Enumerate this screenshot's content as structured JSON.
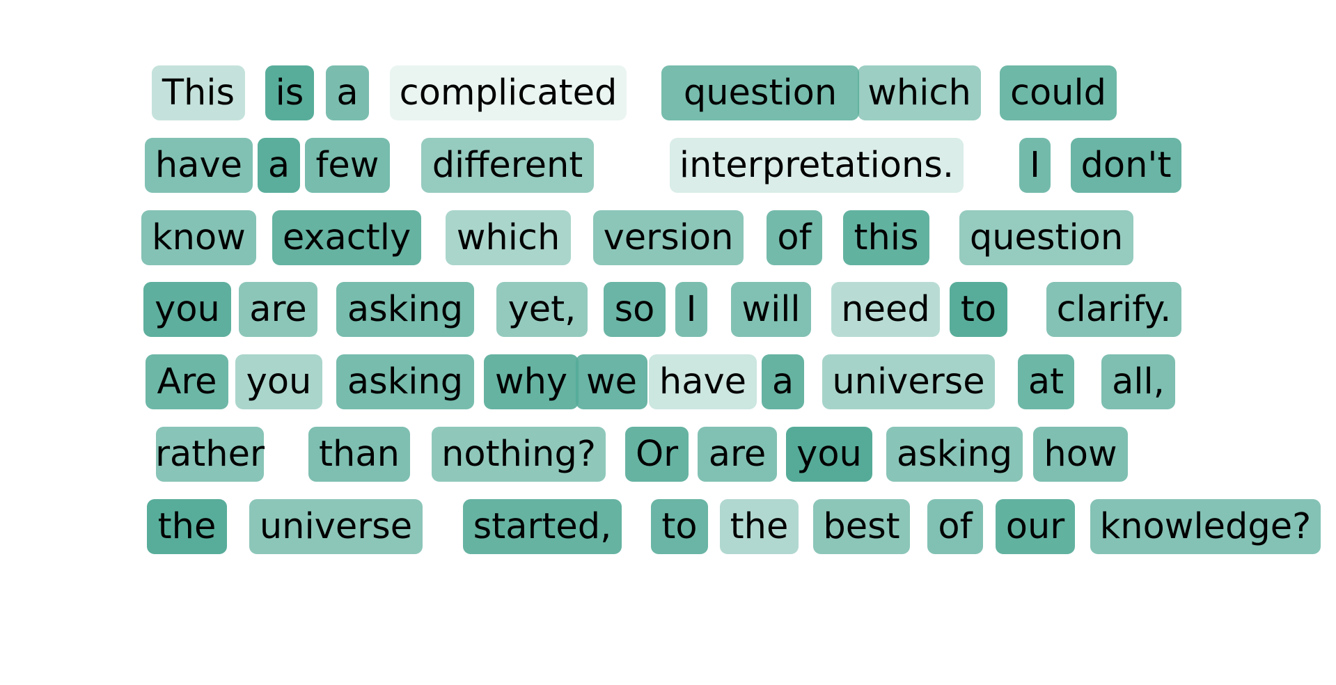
{
  "highlight_color": "#55ab98",
  "tokens": [
    {
      "text": "This",
      "weight": 0.35
    },
    {
      "text": "is",
      "weight": 0.98
    },
    {
      "text": "a",
      "weight": 0.78
    },
    {
      "text": "complicated",
      "weight": 0.12
    },
    {
      "text": "question",
      "weight": 0.8
    },
    {
      "text": "which",
      "weight": 0.58
    },
    {
      "text": "could",
      "weight": 0.85
    },
    {
      "text": "have",
      "weight": 0.74
    },
    {
      "text": "a",
      "weight": 0.97
    },
    {
      "text": "few",
      "weight": 0.8
    },
    {
      "text": "different",
      "weight": 0.62
    },
    {
      "text": "interpretations.",
      "weight": 0.22
    },
    {
      "text": "I",
      "weight": 0.82
    },
    {
      "text": "don't",
      "weight": 0.88
    },
    {
      "text": "know",
      "weight": 0.72
    },
    {
      "text": "exactly",
      "weight": 0.9
    },
    {
      "text": "which",
      "weight": 0.5
    },
    {
      "text": "version",
      "weight": 0.68
    },
    {
      "text": "of",
      "weight": 0.82
    },
    {
      "text": "this",
      "weight": 0.92
    },
    {
      "text": "question",
      "weight": 0.62
    },
    {
      "text": "you",
      "weight": 0.95
    },
    {
      "text": "are",
      "weight": 0.68
    },
    {
      "text": "asking",
      "weight": 0.8
    },
    {
      "text": "yet,",
      "weight": 0.63
    },
    {
      "text": "so",
      "weight": 0.88
    },
    {
      "text": "I",
      "weight": 0.78
    },
    {
      "text": "will",
      "weight": 0.74
    },
    {
      "text": "need",
      "weight": 0.42
    },
    {
      "text": "to",
      "weight": 0.98
    },
    {
      "text": "clarify.",
      "weight": 0.72
    },
    {
      "text": "Are",
      "weight": 0.86
    },
    {
      "text": "you",
      "weight": 0.5
    },
    {
      "text": "asking",
      "weight": 0.8
    },
    {
      "text": "why",
      "weight": 0.9
    },
    {
      "text": "we",
      "weight": 0.88
    },
    {
      "text": "have",
      "weight": 0.3
    },
    {
      "text": "a",
      "weight": 0.9
    },
    {
      "text": "universe",
      "weight": 0.52
    },
    {
      "text": "at",
      "weight": 0.86
    },
    {
      "text": "all,",
      "weight": 0.76
    },
    {
      "text": "rather",
      "weight": 0.7
    },
    {
      "text": "than",
      "weight": 0.76
    },
    {
      "text": "nothing?",
      "weight": 0.66
    },
    {
      "text": "Or",
      "weight": 0.9
    },
    {
      "text": "are",
      "weight": 0.74
    },
    {
      "text": "you",
      "weight": 1.0
    },
    {
      "text": "asking",
      "weight": 0.7
    },
    {
      "text": "how",
      "weight": 0.76
    },
    {
      "text": "the",
      "weight": 0.98
    },
    {
      "text": "universe",
      "weight": 0.68
    },
    {
      "text": "started,",
      "weight": 0.9
    },
    {
      "text": "to",
      "weight": 0.88
    },
    {
      "text": "the",
      "weight": 0.46
    },
    {
      "text": "best",
      "weight": 0.68
    },
    {
      "text": "of",
      "weight": 0.74
    },
    {
      "text": "our",
      "weight": 0.92
    },
    {
      "text": "knowledge?",
      "weight": 0.72
    }
  ]
}
